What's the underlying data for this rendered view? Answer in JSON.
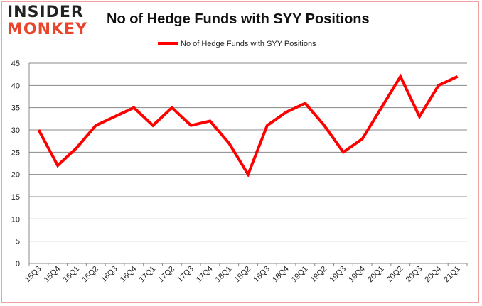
{
  "logo": {
    "line1": "INSIDER",
    "line2": "MONKEY"
  },
  "chart_data": {
    "type": "line",
    "title": "No of Hedge Funds with SYY Positions",
    "xlabel": "",
    "ylabel": "",
    "categories": [
      "15Q3",
      "15Q4",
      "16Q1",
      "16Q2",
      "16Q3",
      "16Q4",
      "17Q1",
      "17Q2",
      "17Q3",
      "17Q4",
      "18Q1",
      "18Q2",
      "18Q3",
      "18Q4",
      "19Q1",
      "19Q2",
      "19Q3",
      "19Q4",
      "20Q1",
      "20Q2",
      "20Q3",
      "20Q4",
      "21Q1"
    ],
    "series": [
      {
        "name": "No of Hedge Funds with SYY Positions",
        "color": "#ff0000",
        "values": [
          30,
          22,
          26,
          31,
          33,
          35,
          31,
          35,
          31,
          32,
          27,
          20,
          31,
          34,
          36,
          31,
          25,
          28,
          35,
          42,
          33,
          40,
          42
        ]
      }
    ],
    "ylim": [
      0,
      45
    ],
    "yticks": [
      0,
      5,
      10,
      15,
      20,
      25,
      30,
      35,
      40,
      45
    ],
    "grid": true,
    "legend": "top-center"
  }
}
